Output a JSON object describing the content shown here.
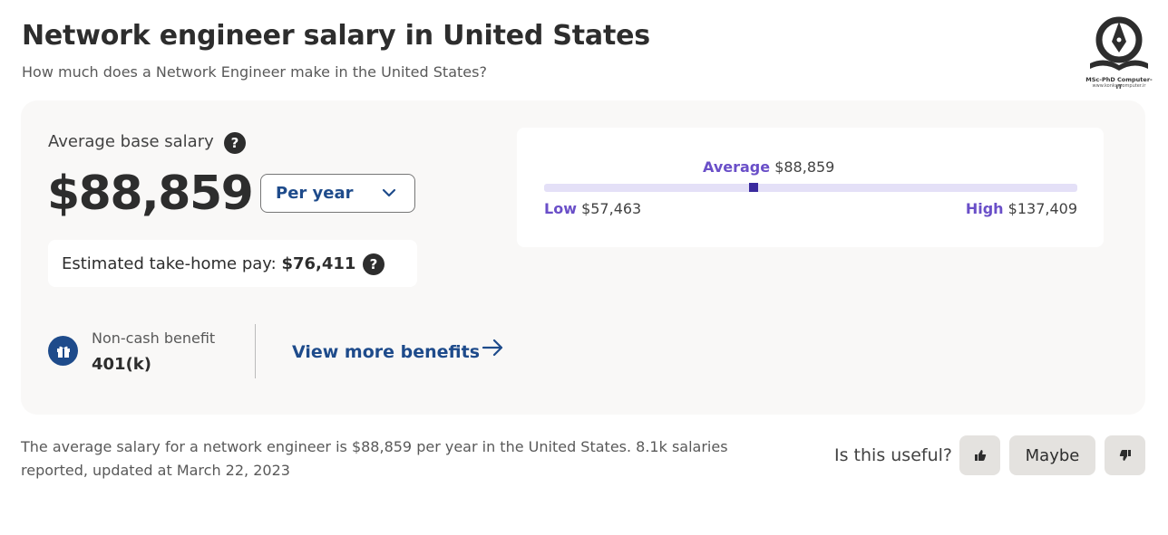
{
  "header": {
    "title": "Network engineer salary in United States",
    "subtitle": "How much does a Network Engineer make in the United States?"
  },
  "logo": {
    "text": "MSc-PhD Computer-IT",
    "subtext": "www.konkurcomputer.ir"
  },
  "salary": {
    "label": "Average base salary",
    "help_glyph": "?",
    "value": "$88,859",
    "period": {
      "selected": "Per year"
    },
    "takehome": {
      "label": "Estimated take-home pay: ",
      "value": "$76,411"
    }
  },
  "range": {
    "average_label": "Average",
    "average_value": "$88,859",
    "low_label": "Low",
    "low_value": "$57,463",
    "high_label": "High",
    "high_value": "$137,409",
    "low_num": 57463,
    "high_num": 137409,
    "avg_num": 88859
  },
  "benefits": {
    "label": "Non-cash benefit",
    "value": "401(k)",
    "more_label": "View more benefits"
  },
  "summary": "The average salary for a network engineer is $88,859 per year in the United States.  8.1k salaries reported, updated at March 22, 2023",
  "feedback": {
    "question": "Is this useful?",
    "maybe_label": "Maybe"
  },
  "colors": {
    "accent_blue": "#1e4b8b",
    "range_purple": "#6a4fc8",
    "marker": "#3a2a9e",
    "track": "#e4e0f7"
  }
}
